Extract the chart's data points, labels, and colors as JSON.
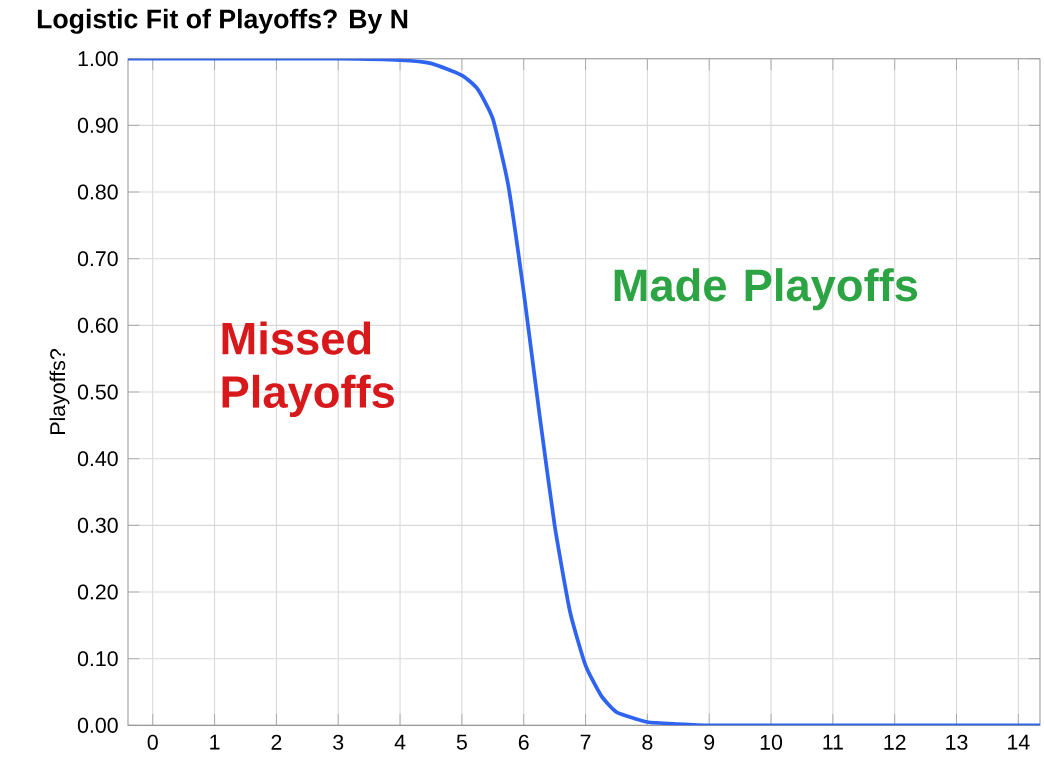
{
  "chart_data": {
    "type": "line",
    "title": "Logistic Fit of Playoffs? By N",
    "ylabel": "Playoffs?",
    "annotations": [
      "Missed Playoffs",
      "Made Playoffs"
    ],
    "x": [
      -0.4,
      1,
      2,
      3,
      4,
      4.5,
      5,
      5.25,
      5.5,
      5.75,
      6,
      6.25,
      6.5,
      6.75,
      7,
      7.25,
      7.5,
      8,
      8.5,
      9,
      10,
      14.35
    ],
    "series": [
      {
        "color": "#2e64f0",
        "values": [
          1.0,
          1.0,
          1.0,
          1.0,
          0.998,
          0.993,
          0.975,
          0.955,
          0.91,
          0.81,
          0.65,
          0.47,
          0.3,
          0.17,
          0.09,
          0.045,
          0.02,
          0.005,
          0.002,
          0.0,
          0.0,
          0.0
        ]
      }
    ],
    "xlim": [
      -0.4,
      14.35
    ],
    "ylim": [
      0,
      1.0
    ],
    "xticks": [
      0,
      1,
      2,
      3,
      4,
      5,
      6,
      7,
      8,
      9,
      10,
      11,
      12,
      13,
      14
    ],
    "yticks": [
      {
        "value": 0,
        "label": "0.00"
      },
      {
        "value": 0.1,
        "label": "0.10"
      },
      {
        "value": 0.2,
        "label": "0.20"
      },
      {
        "value": 0.3,
        "label": "0.30"
      },
      {
        "value": 0.4,
        "label": "0.40"
      },
      {
        "value": 0.5,
        "label": "0.50"
      },
      {
        "value": 0.6,
        "label": "0.60"
      },
      {
        "value": 0.7,
        "label": "0.70"
      },
      {
        "value": 0.8,
        "label": "0.80"
      },
      {
        "value": 0.9,
        "label": "0.90"
      },
      {
        "value": 1.0,
        "label": "1.00"
      }
    ],
    "grid": true,
    "marker": "none",
    "line_style": "solid"
  }
}
